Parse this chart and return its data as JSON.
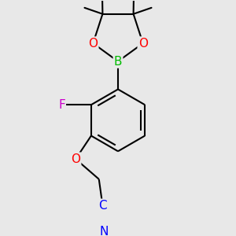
{
  "bg_color": "#e8e8e8",
  "bond_color": "#000000",
  "atom_colors": {
    "B": "#00bb00",
    "O": "#ff0000",
    "F": "#cc00cc",
    "N": "#0000ff",
    "C_blue": "#0000ff"
  },
  "line_width": 1.5,
  "font_size": 11
}
